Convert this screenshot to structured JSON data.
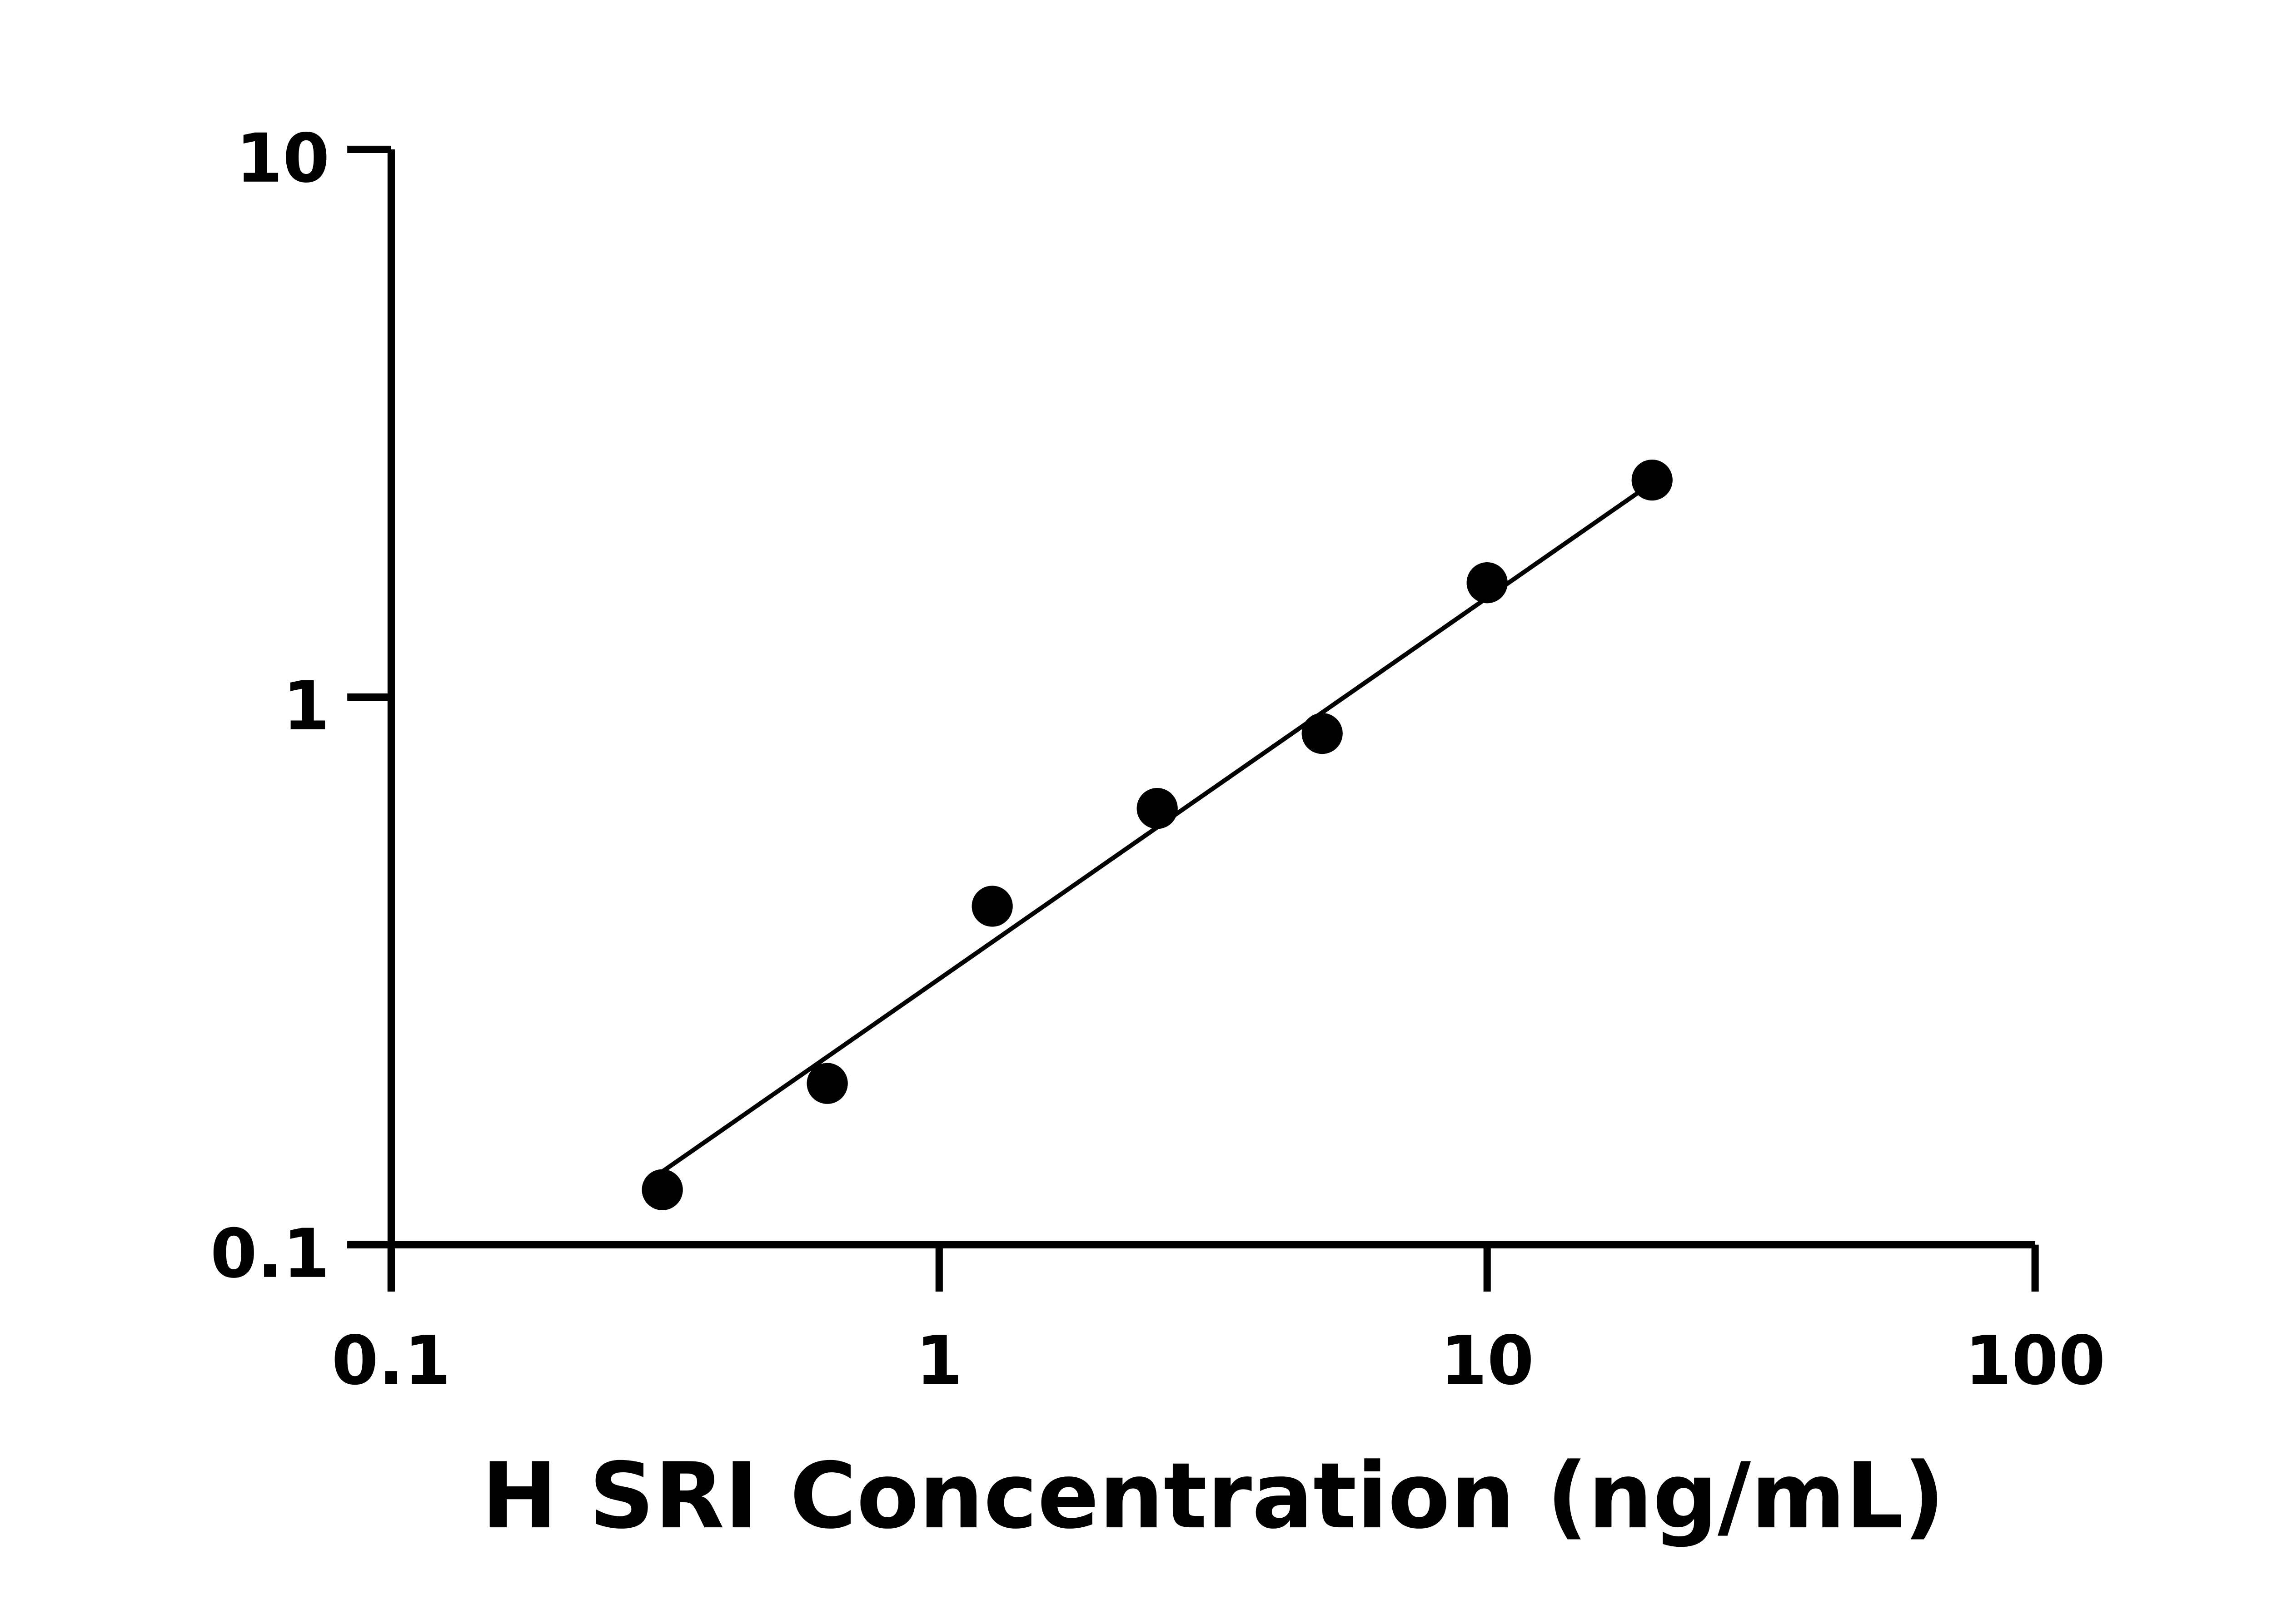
{
  "chart_data": {
    "type": "scatter",
    "title": "",
    "xlabel": "H SRI Concentration (ng/mL)",
    "ylabel": "",
    "x_scale": "log",
    "y_scale": "log",
    "xlim": [
      0.1,
      100
    ],
    "ylim": [
      0.1,
      10
    ],
    "x_ticks": [
      "0.1",
      "1",
      "10",
      "100"
    ],
    "y_ticks": [
      "0.1",
      "1",
      "10"
    ],
    "grid": false,
    "legend": "none",
    "color": "#000000",
    "points": {
      "x": [
        0.3125,
        0.625,
        1.25,
        2.5,
        5,
        10,
        20
      ],
      "y": [
        0.126,
        0.197,
        0.415,
        0.626,
        0.858,
        1.617,
        2.49
      ]
    },
    "fit_line": {
      "x": [
        0.3125,
        20
      ],
      "y": [
        0.136,
        2.46
      ]
    }
  }
}
